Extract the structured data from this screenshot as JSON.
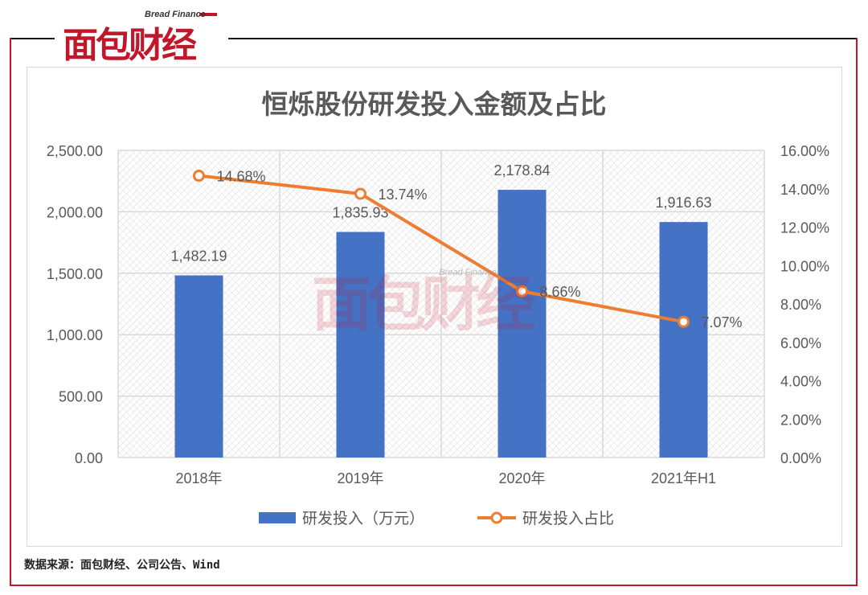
{
  "brand": {
    "name": "面包财经",
    "sub": "Bread Finance"
  },
  "source": "数据来源：面包财经、公司公告、Wind",
  "colors": {
    "bar": "#4472C4",
    "line": "#ED7D31",
    "frame": "#C0182A"
  },
  "chart_data": {
    "type": "bar+line",
    "title": "恒烁股份研发投入金额及占比",
    "categories": [
      "2018年",
      "2019年",
      "2020年",
      "2021年H1"
    ],
    "series": [
      {
        "name": "研发投入（万元）",
        "type": "bar",
        "axis": "left",
        "values": [
          1482.19,
          1835.93,
          2178.84,
          1916.63
        ],
        "labels": [
          "1,482.19",
          "1,835.93",
          "2,178.84",
          "1,916.63"
        ]
      },
      {
        "name": "研发投入占比",
        "type": "line",
        "axis": "right",
        "values": [
          14.68,
          13.74,
          8.66,
          7.07
        ],
        "labels": [
          "14.68%",
          "13.74%",
          "8.66%",
          "7.07%"
        ]
      }
    ],
    "y_left": {
      "min": 0,
      "max": 2500,
      "step": 500,
      "ticks": [
        "0.00",
        "500.00",
        "1,000.00",
        "1,500.00",
        "2,000.00",
        "2,500.00"
      ]
    },
    "y_right": {
      "min": 0,
      "max": 16,
      "step": 2,
      "ticks": [
        "0.00%",
        "2.00%",
        "4.00%",
        "6.00%",
        "8.00%",
        "10.00%",
        "12.00%",
        "14.00%",
        "16.00%"
      ]
    },
    "grid": true,
    "legend": "bottom",
    "watermark": "面包财经"
  }
}
